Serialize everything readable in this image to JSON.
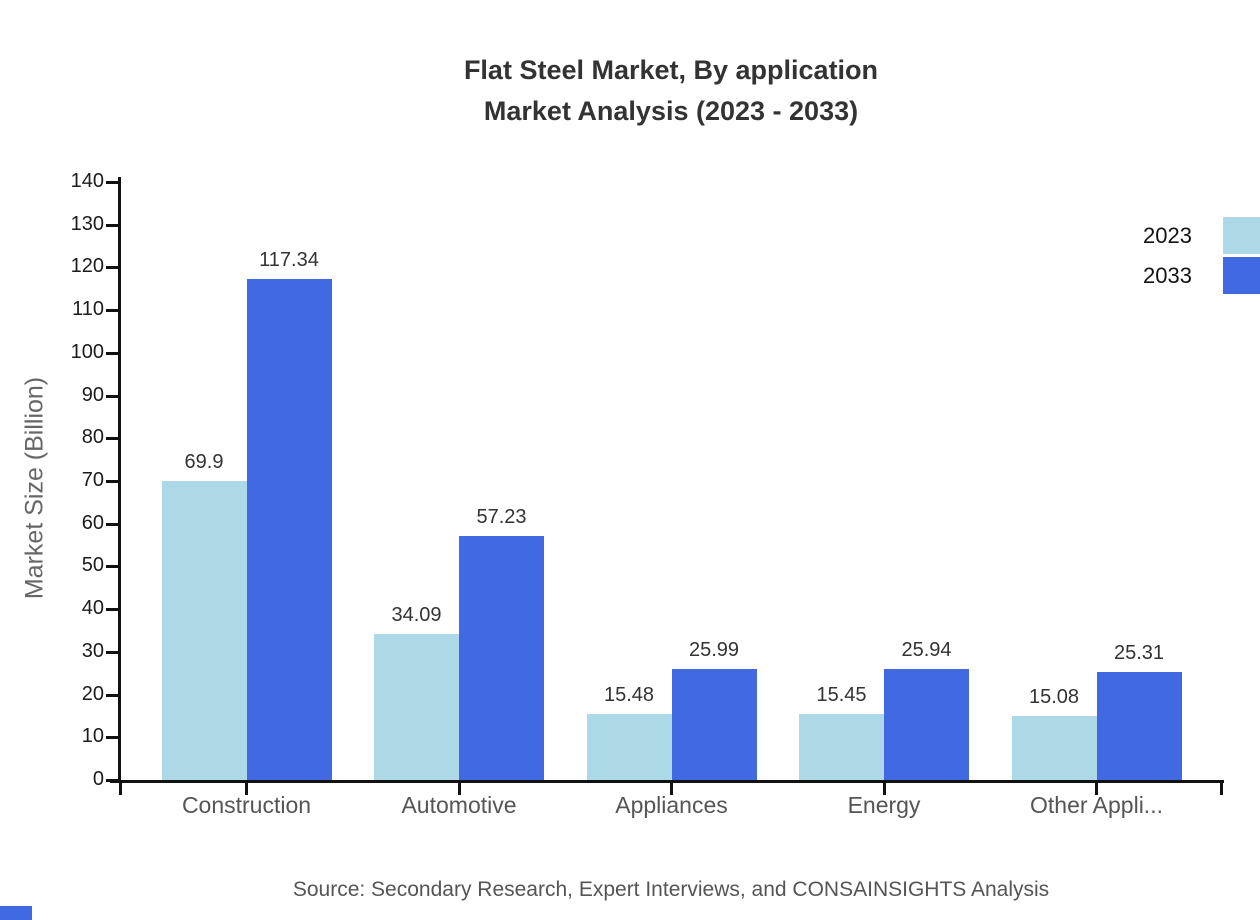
{
  "title": {
    "line1": "Flat Steel Market, By application",
    "line2": "Market Analysis (2023 - 2033)"
  },
  "source_note": "Source: Secondary Research, Expert Interviews, and CONSAINSIGHTS Analysis",
  "colors": {
    "series_2023": "#ADD8E6",
    "series_2033": "#4169E1",
    "axis": "#111111",
    "title_text": "#333333",
    "ytick_label": "#1b1b1b",
    "category_label": "#555555",
    "value_label": "#333333",
    "axis_title": "#666666",
    "source_text": "#555555",
    "legend_text": "#131313"
  },
  "chart_data": {
    "type": "bar",
    "title": "Flat Steel Market, By application Market Analysis (2023 - 2033)",
    "categories": [
      "Construction",
      "Automotive",
      "Appliances",
      "Energy",
      "Other Appli..."
    ],
    "series": [
      {
        "name": "2023",
        "color": "#ADD8E6",
        "values": [
          69.9,
          34.09,
          15.48,
          15.45,
          15.08
        ]
      },
      {
        "name": "2033",
        "color": "#4169E1",
        "values": [
          117.34,
          57.23,
          25.99,
          25.94,
          25.31
        ]
      }
    ],
    "value_labels": [
      [
        "69.9",
        "34.09",
        "15.48",
        "15.45",
        "15.08"
      ],
      [
        "117.34",
        "57.23",
        "25.99",
        "25.94",
        "25.31"
      ]
    ],
    "xlabel": "",
    "ylabel": "Market Size (Billion)",
    "ylim": [
      0,
      140
    ],
    "ytick_step": 10,
    "grid": false,
    "legend_position": "top-right",
    "value_labels_shown": true
  }
}
